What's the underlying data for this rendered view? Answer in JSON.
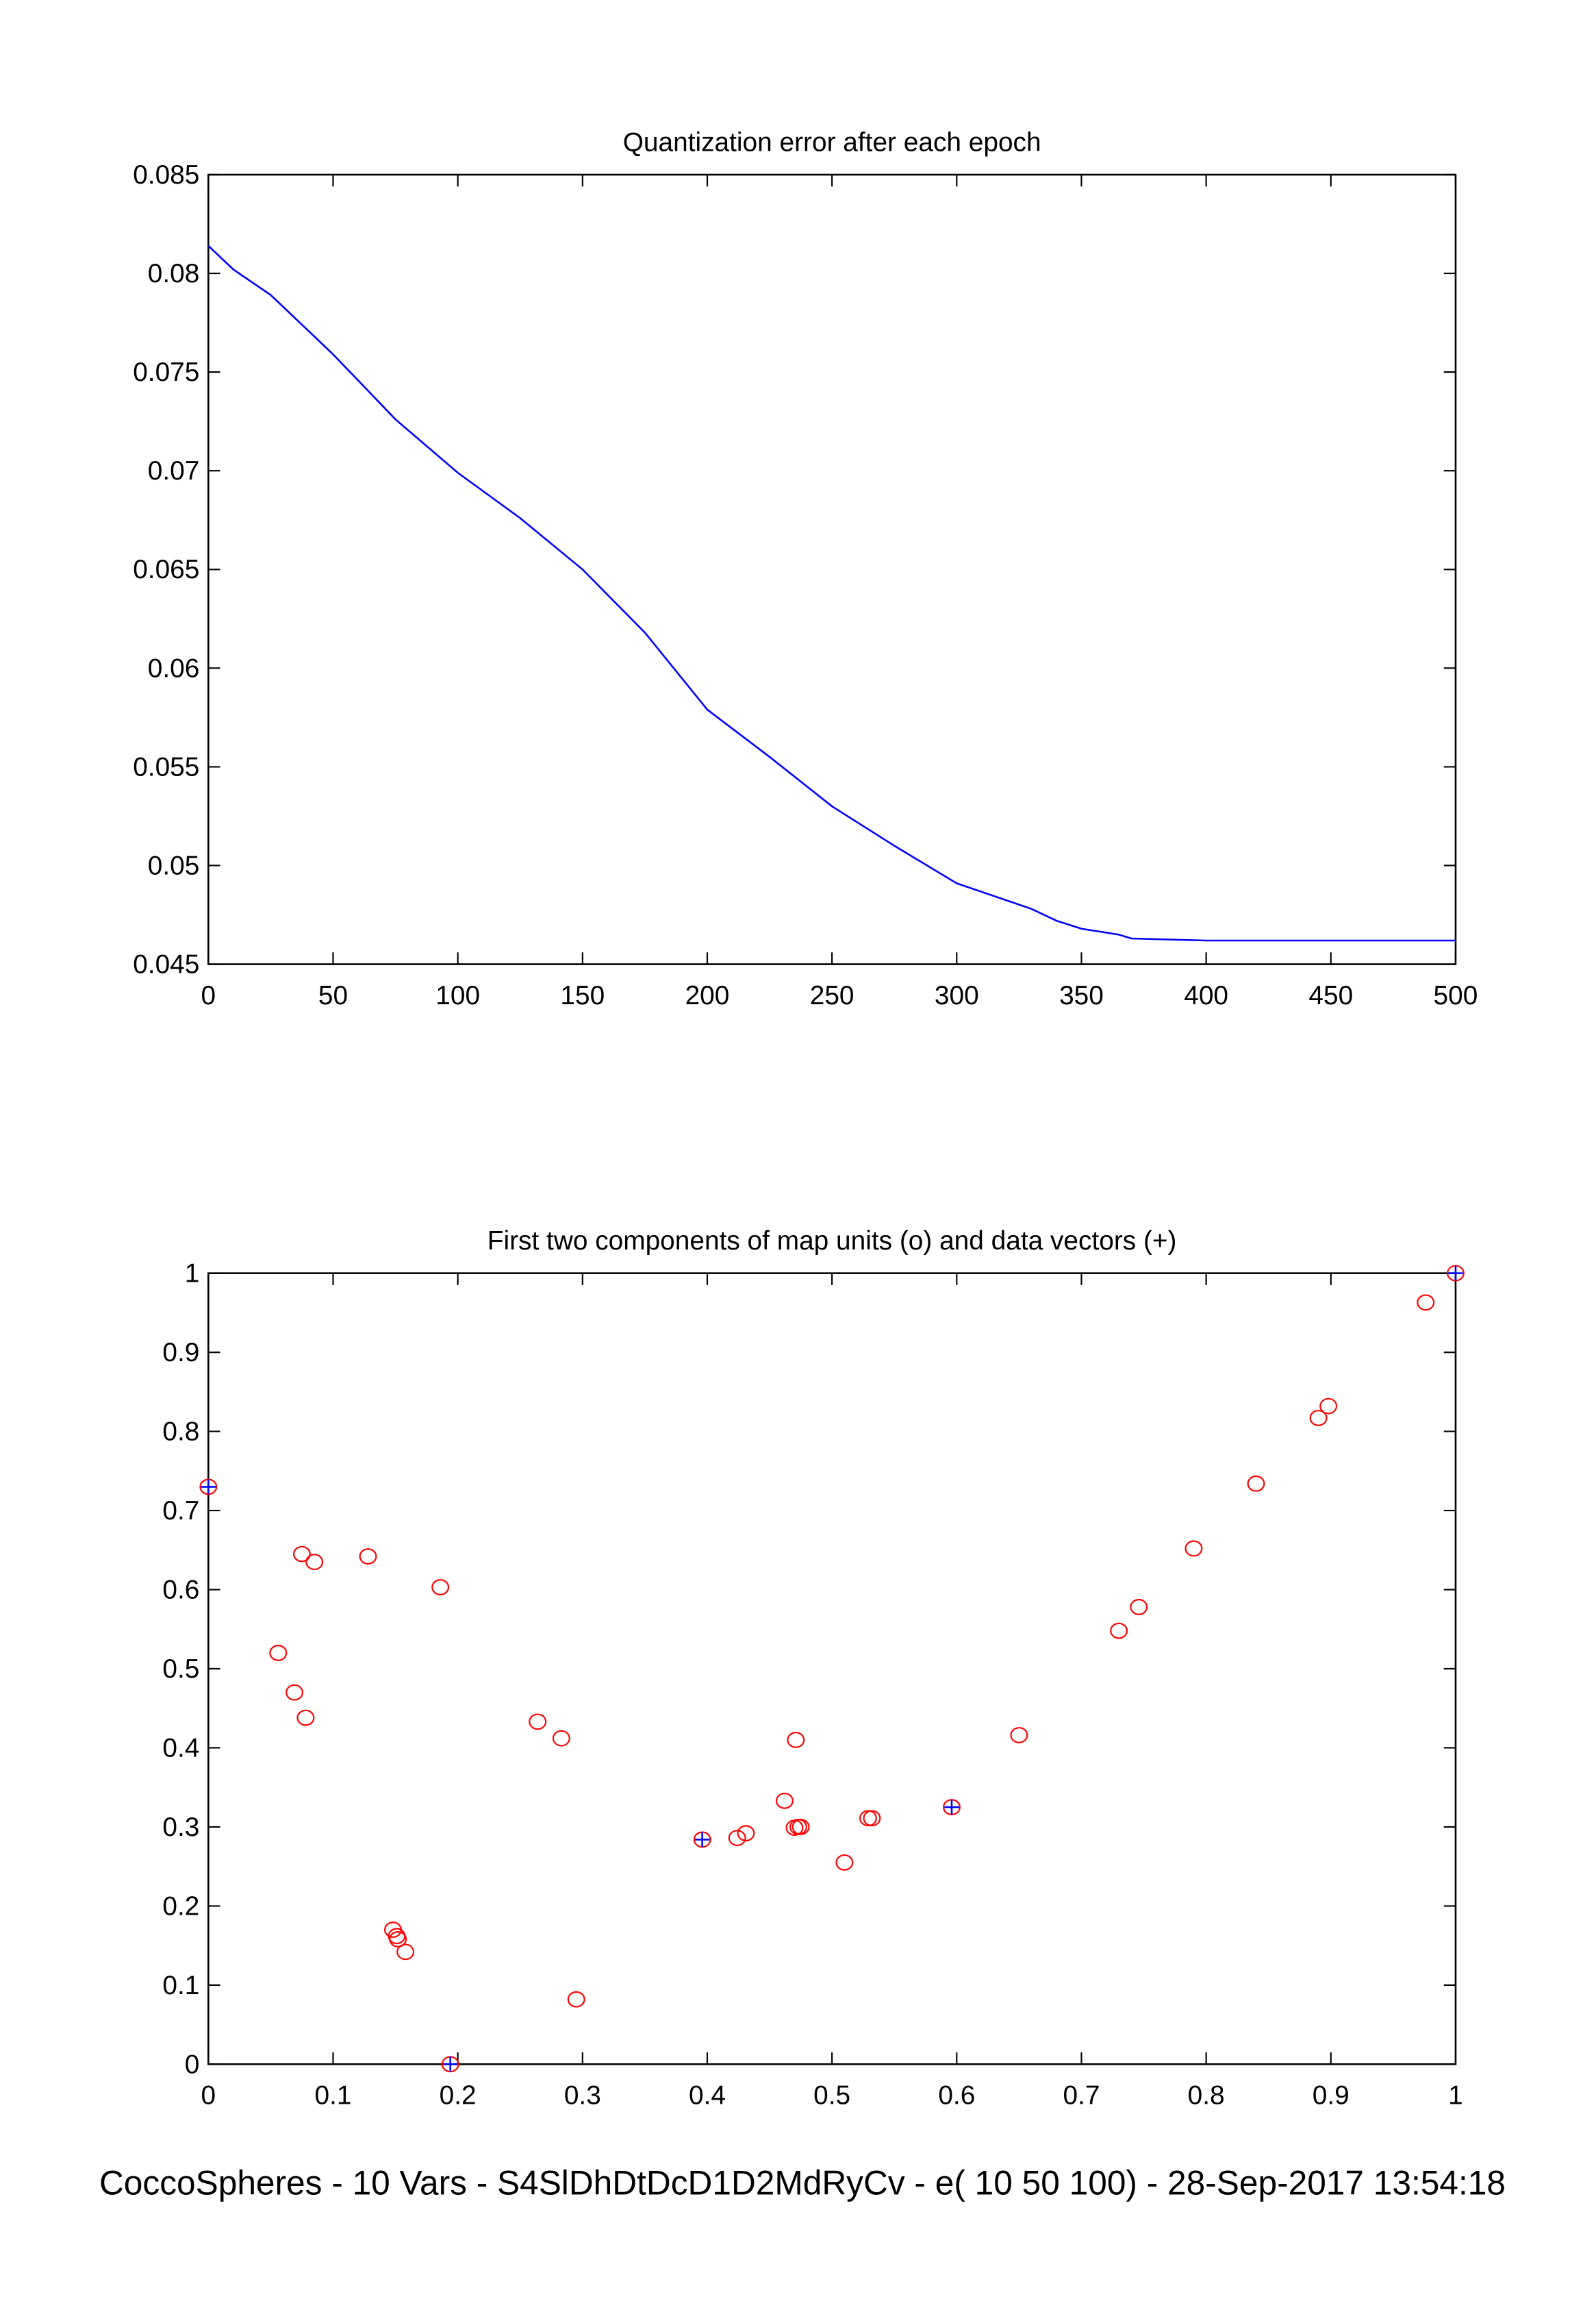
{
  "chart_data": [
    {
      "type": "line",
      "title": "Quantization error after each epoch",
      "xlabel": "",
      "ylabel": "",
      "xlim": [
        0,
        500
      ],
      "ylim": [
        0.045,
        0.085
      ],
      "xticks": [
        "0",
        "50",
        "100",
        "150",
        "200",
        "250",
        "300",
        "350",
        "400",
        "450",
        "500"
      ],
      "yticks": [
        "0.045",
        "0.05",
        "0.055",
        "0.06",
        "0.065",
        "0.07",
        "0.075",
        "0.08",
        "0.085"
      ],
      "series": [
        {
          "name": "quantization error",
          "color": "#0000ff",
          "x": [
            0,
            10,
            25,
            50,
            75,
            100,
            125,
            150,
            175,
            200,
            225,
            250,
            275,
            300,
            330,
            340,
            350,
            365,
            370,
            400,
            450,
            500
          ],
          "y": [
            0.0814,
            0.0802,
            0.0789,
            0.0759,
            0.0726,
            0.0699,
            0.0676,
            0.065,
            0.0618,
            0.0579,
            0.0555,
            0.053,
            0.051,
            0.0491,
            0.0478,
            0.0472,
            0.0468,
            0.0465,
            0.0463,
            0.0462,
            0.0462,
            0.0462
          ]
        }
      ]
    },
    {
      "type": "scatter",
      "title": "First two components of map units (o) and data vectors (+)",
      "xlabel": "",
      "ylabel": "",
      "xlim": [
        0,
        1
      ],
      "ylim": [
        0,
        1
      ],
      "xticks": [
        "0",
        "0.1",
        "0.2",
        "0.3",
        "0.4",
        "0.5",
        "0.6",
        "0.7",
        "0.8",
        "0.9",
        "1"
      ],
      "yticks": [
        "0",
        "0.1",
        "0.2",
        "0.3",
        "0.4",
        "0.5",
        "0.6",
        "0.7",
        "0.8",
        "0.9",
        "1"
      ],
      "series": [
        {
          "name": "map units (o)",
          "marker": "o",
          "color": "#ff0000",
          "points": [
            [
              0,
              0.73
            ],
            [
              0.075,
              0.645
            ],
            [
              0.085,
              0.635
            ],
            [
              0.128,
              0.642
            ],
            [
              0.186,
              0.603
            ],
            [
              0.056,
              0.52
            ],
            [
              0.069,
              0.47
            ],
            [
              0.078,
              0.438
            ],
            [
              0.264,
              0.433
            ],
            [
              0.283,
              0.412
            ],
            [
              0.148,
              0.17
            ],
            [
              0.151,
              0.162
            ],
            [
              0.152,
              0.158
            ],
            [
              0.158,
              0.142
            ],
            [
              0.295,
              0.082
            ],
            [
              0.194,
              0
            ],
            [
              0.396,
              0.284
            ],
            [
              0.424,
              0.286
            ],
            [
              0.431,
              0.292
            ],
            [
              0.462,
              0.333
            ],
            [
              0.471,
              0.41
            ],
            [
              0.47,
              0.299
            ],
            [
              0.473,
              0.3
            ],
            [
              0.475,
              0.3
            ],
            [
              0.51,
              0.255
            ],
            [
              0.529,
              0.311
            ],
            [
              0.532,
              0.311
            ],
            [
              0.596,
              0.325
            ],
            [
              0.65,
              0.416
            ],
            [
              0.73,
              0.548
            ],
            [
              0.746,
              0.578
            ],
            [
              0.79,
              0.652
            ],
            [
              0.84,
              0.734
            ],
            [
              0.89,
              0.817
            ],
            [
              0.898,
              0.832
            ],
            [
              0.976,
              0.963
            ],
            [
              1,
              1
            ]
          ]
        },
        {
          "name": "data vectors (+)",
          "marker": "+",
          "color": "#0000ff",
          "points": [
            [
              0,
              0.73
            ],
            [
              0.194,
              0
            ],
            [
              0.396,
              0.284
            ],
            [
              0.596,
              0.325
            ],
            [
              1,
              1
            ]
          ]
        }
      ]
    }
  ],
  "footer": "CoccoSpheres - 10 Vars - S4SlDhDtDcD1D2MdRyCv - e( 10 50 100) - 28-Sep-2017 13:54:18"
}
